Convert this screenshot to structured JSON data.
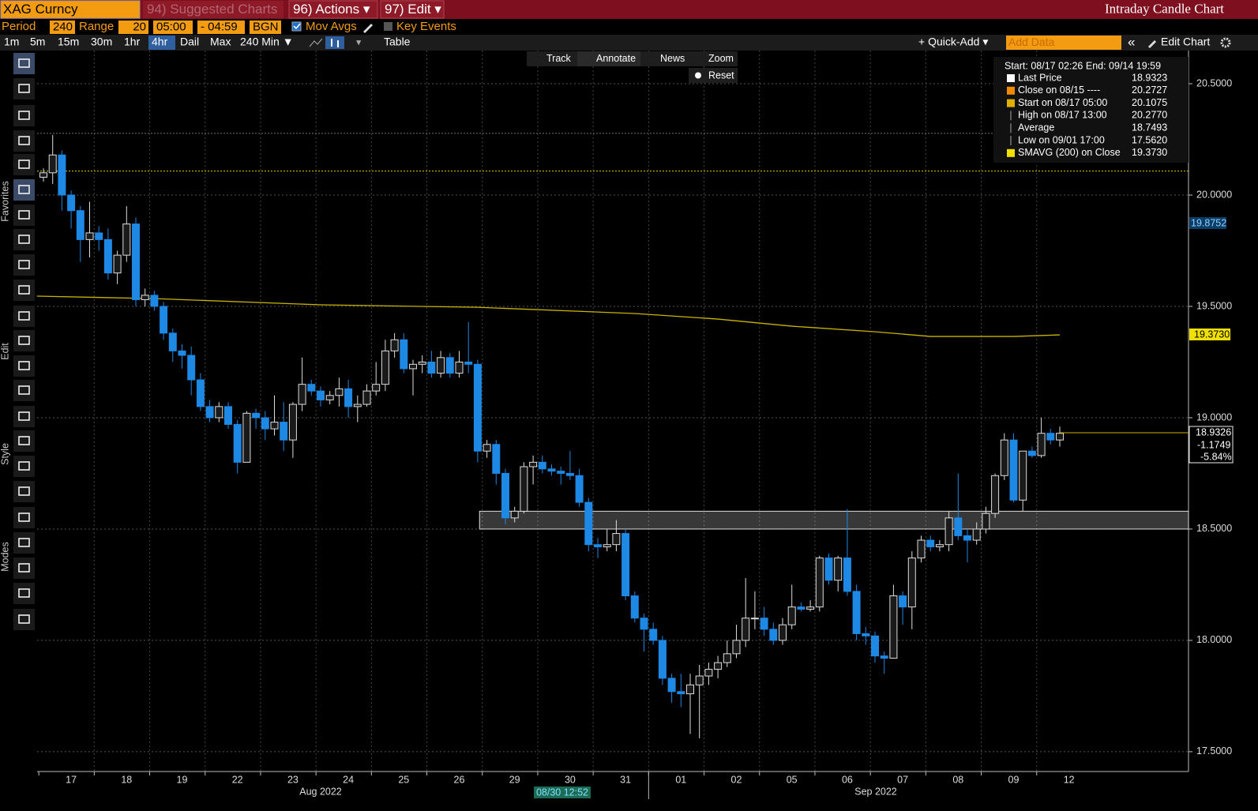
{
  "header": {
    "security": "XAG Curncy",
    "suggested": "94) Suggested Charts",
    "actions": "96) Actions ▾",
    "edit": "97) Edit ▾",
    "title": "Intraday Candle Chart"
  },
  "settings": {
    "period_label": "Period",
    "period": "240",
    "range_label": "Range",
    "range": "20",
    "start": "05:00",
    "end": "- 04:59",
    "bgn": "BGN",
    "mov_avgs": "Mov Avgs",
    "key_events": "Key Events"
  },
  "toolbar": {
    "intervals": [
      "1m",
      "5m",
      "15m",
      "30m",
      "1hr",
      "4hr",
      "Dail",
      "Max",
      "240 Min ▼"
    ],
    "active": 5,
    "table": "Table",
    "quick_add": "+ Quick-Add ▾",
    "add_data": "Add Data",
    "collapse": "«",
    "edit_chart": "Edit Chart"
  },
  "chart_tools": [
    "Track",
    "Annotate",
    "News",
    "Zoom",
    "Reset"
  ],
  "side_labels": [
    "Favorites",
    "Edit",
    "Style",
    "Modes"
  ],
  "legend": {
    "range": "Start: 08/17 02:26 End: 09/14 19:59",
    "rows": [
      {
        "label": "Last Price",
        "value": "18.9323",
        "color": "#ffffff"
      },
      {
        "label": "Close on 08/15 ----",
        "value": "20.2727",
        "color": "#f08a00"
      },
      {
        "label": "Start on 08/17 05:00",
        "value": "20.1075",
        "color": "#e0b000"
      },
      {
        "label": "High on 08/17 13:00",
        "value": "20.2770",
        "color": null
      },
      {
        "label": "Average",
        "value": "18.7493",
        "color": null
      },
      {
        "label": "Low on 09/01 17:00",
        "value": "17.5620",
        "color": null
      },
      {
        "label": "SMAVG (200)  on Close",
        "value": "19.3730",
        "color": "#f0e000"
      }
    ]
  },
  "price_labels": {
    "sma_high": "19.8752",
    "sma": "19.3730",
    "last": "18.9326",
    "change": "-1.1749",
    "change_pct": "-5.84%"
  },
  "cursor_label": "08/30 12:52",
  "chart_data": {
    "type": "candlestick",
    "up_color": "#dddddd",
    "down_color": "#1e88e5",
    "categories": [
      "17",
      "18",
      "19",
      "22",
      "23",
      "24",
      "25",
      "26",
      "29",
      "30",
      "31",
      "01",
      "02",
      "05",
      "06",
      "07",
      "08",
      "09",
      "12"
    ],
    "months": [
      "Aug 2022",
      "Sep 2022"
    ],
    "ylim": [
      17.411,
      20.649
    ],
    "yticks": [
      {
        "value": 17.5,
        "label": "17.5000"
      },
      {
        "value": 18,
        "label": "18.0000"
      },
      {
        "value": 18.5,
        "label": "18.5000"
      },
      {
        "value": 19,
        "label": "19.0000"
      },
      {
        "value": 19.5,
        "label": "19.5000"
      },
      {
        "value": 20,
        "label": "20.0000"
      },
      {
        "value": 20.5,
        "label": "20.5000"
      }
    ],
    "grid": true,
    "ohlc": [
      [
        20.08,
        20.12,
        20.06,
        20.1
      ],
      [
        20.1,
        20.27,
        20.05,
        20.18
      ],
      [
        20.18,
        20.2,
        19.93,
        20.0
      ],
      [
        20.0,
        20.02,
        19.85,
        19.93
      ],
      [
        19.93,
        19.95,
        19.7,
        19.8
      ],
      [
        19.8,
        19.97,
        19.72,
        19.83
      ],
      [
        19.83,
        19.86,
        19.75,
        19.8
      ],
      [
        19.8,
        19.85,
        19.62,
        19.65
      ],
      [
        19.65,
        19.75,
        19.6,
        19.73
      ],
      [
        19.73,
        19.95,
        19.7,
        19.87
      ],
      [
        19.87,
        19.9,
        19.5,
        19.53
      ],
      [
        19.53,
        19.58,
        19.5,
        19.55
      ],
      [
        19.55,
        19.57,
        19.48,
        19.5
      ],
      [
        19.5,
        19.52,
        19.35,
        19.38
      ],
      [
        19.38,
        19.4,
        19.25,
        19.3
      ],
      [
        19.3,
        19.33,
        19.22,
        19.28
      ],
      [
        19.28,
        19.32,
        19.1,
        19.17
      ],
      [
        19.17,
        19.2,
        19.03,
        19.05
      ],
      [
        19.05,
        19.08,
        18.98,
        19.0
      ],
      [
        19.0,
        19.07,
        18.98,
        19.05
      ],
      [
        19.05,
        19.07,
        18.95,
        18.97
      ],
      [
        18.97,
        18.99,
        18.75,
        18.8
      ],
      [
        18.8,
        19.03,
        18.8,
        19.02
      ],
      [
        19.02,
        19.04,
        18.95,
        19.0
      ],
      [
        19.0,
        19.03,
        18.9,
        18.95
      ],
      [
        18.95,
        19.1,
        18.92,
        18.98
      ],
      [
        18.98,
        19.07,
        18.85,
        18.9
      ],
      [
        18.9,
        19.07,
        18.82,
        19.06
      ],
      [
        19.06,
        19.27,
        19.03,
        19.15
      ],
      [
        19.15,
        19.17,
        19.1,
        19.12
      ],
      [
        19.12,
        19.14,
        19.05,
        19.08
      ],
      [
        19.08,
        19.12,
        19.06,
        19.1
      ],
      [
        19.1,
        19.18,
        19.05,
        19.13
      ],
      [
        19.13,
        19.17,
        19.0,
        19.05
      ],
      [
        19.05,
        19.1,
        18.98,
        19.06
      ],
      [
        19.06,
        19.15,
        19.05,
        19.12
      ],
      [
        19.12,
        19.25,
        19.1,
        19.15
      ],
      [
        19.15,
        19.35,
        19.12,
        19.3
      ],
      [
        19.3,
        19.38,
        19.27,
        19.35
      ],
      [
        19.35,
        19.38,
        19.2,
        19.22
      ],
      [
        19.22,
        19.26,
        19.1,
        19.24
      ],
      [
        19.24,
        19.28,
        19.2,
        19.25
      ],
      [
        19.25,
        19.3,
        19.18,
        19.2
      ],
      [
        19.2,
        19.3,
        19.18,
        19.27
      ],
      [
        19.27,
        19.29,
        19.18,
        19.2
      ],
      [
        19.2,
        19.3,
        19.18,
        19.25
      ],
      [
        19.25,
        19.43,
        19.2,
        19.24
      ],
      [
        19.24,
        19.26,
        18.8,
        18.85
      ],
      [
        18.85,
        18.9,
        18.82,
        18.88
      ],
      [
        18.88,
        18.9,
        18.7,
        18.75
      ],
      [
        18.75,
        18.77,
        18.52,
        18.55
      ],
      [
        18.55,
        18.6,
        18.53,
        18.58
      ],
      [
        18.58,
        18.8,
        18.57,
        18.78
      ],
      [
        18.78,
        18.83,
        18.7,
        18.8
      ],
      [
        18.8,
        18.83,
        18.75,
        18.77
      ],
      [
        18.77,
        18.79,
        18.74,
        18.76
      ],
      [
        18.76,
        18.78,
        18.7,
        18.75
      ],
      [
        18.75,
        18.85,
        18.72,
        18.74
      ],
      [
        18.74,
        18.77,
        18.6,
        18.62
      ],
      [
        18.62,
        18.64,
        18.4,
        18.43
      ],
      [
        18.43,
        18.46,
        18.37,
        18.42
      ],
      [
        18.42,
        18.5,
        18.4,
        18.43
      ],
      [
        18.43,
        18.54,
        18.4,
        18.48
      ],
      [
        18.48,
        18.5,
        18.18,
        18.2
      ],
      [
        18.2,
        18.22,
        18.08,
        18.1
      ],
      [
        18.1,
        18.12,
        17.95,
        18.05
      ],
      [
        18.05,
        18.08,
        17.98,
        18.0
      ],
      [
        18.0,
        18.02,
        17.8,
        17.83
      ],
      [
        17.83,
        17.85,
        17.72,
        17.77
      ],
      [
        17.77,
        17.85,
        17.7,
        17.76
      ],
      [
        17.76,
        17.85,
        17.58,
        17.8
      ],
      [
        17.8,
        17.89,
        17.56,
        17.84
      ],
      [
        17.84,
        17.9,
        17.8,
        17.87
      ],
      [
        17.87,
        17.93,
        17.83,
        17.9
      ],
      [
        17.9,
        18.0,
        17.88,
        17.94
      ],
      [
        17.94,
        18.07,
        17.92,
        18.0
      ],
      [
        18.0,
        18.28,
        17.97,
        18.1
      ],
      [
        18.1,
        18.22,
        18.05,
        18.1
      ],
      [
        18.1,
        18.15,
        18.02,
        18.05
      ],
      [
        18.05,
        18.08,
        17.98,
        18.0
      ],
      [
        18.0,
        18.1,
        17.98,
        18.07
      ],
      [
        18.07,
        18.25,
        18.05,
        18.15
      ],
      [
        18.15,
        18.17,
        18.13,
        18.14
      ],
      [
        18.14,
        18.18,
        18.13,
        18.15
      ],
      [
        18.15,
        18.38,
        18.13,
        18.37
      ],
      [
        18.37,
        18.39,
        18.25,
        18.27
      ],
      [
        18.27,
        18.38,
        18.22,
        18.37
      ],
      [
        18.37,
        18.59,
        18.2,
        18.22
      ],
      [
        18.22,
        18.25,
        18.0,
        18.03
      ],
      [
        18.03,
        18.06,
        17.98,
        18.02
      ],
      [
        18.02,
        18.04,
        17.9,
        17.93
      ],
      [
        17.93,
        17.95,
        17.85,
        17.92
      ],
      [
        17.92,
        18.25,
        17.92,
        18.2
      ],
      [
        18.2,
        18.22,
        18.07,
        18.15
      ],
      [
        18.15,
        18.4,
        18.05,
        18.37
      ],
      [
        18.37,
        18.47,
        18.35,
        18.45
      ],
      [
        18.45,
        18.47,
        18.4,
        18.42
      ],
      [
        18.42,
        18.45,
        18.4,
        18.43
      ],
      [
        18.43,
        18.58,
        18.4,
        18.55
      ],
      [
        18.55,
        18.75,
        18.45,
        18.47
      ],
      [
        18.47,
        18.5,
        18.35,
        18.45
      ],
      [
        18.45,
        18.53,
        18.43,
        18.5
      ],
      [
        18.5,
        18.6,
        18.48,
        18.57
      ],
      [
        18.57,
        18.75,
        18.55,
        18.74
      ],
      [
        18.74,
        18.93,
        18.72,
        18.9
      ],
      [
        18.9,
        18.93,
        18.62,
        18.63
      ],
      [
        18.63,
        18.85,
        18.58,
        18.85
      ],
      [
        18.85,
        18.87,
        18.82,
        18.83
      ],
      [
        18.83,
        19.0,
        18.82,
        18.93
      ],
      [
        18.93,
        18.95,
        18.88,
        18.9
      ],
      [
        18.9,
        18.96,
        18.87,
        18.93
      ]
    ],
    "sma": {
      "color": "#c8b400",
      "x": [
        -0.7,
        12,
        30,
        47,
        64,
        73,
        81,
        90,
        96,
        105,
        110
      ],
      "values": [
        19.546,
        19.535,
        19.507,
        19.496,
        19.468,
        19.443,
        19.411,
        19.386,
        19.365,
        19.365,
        19.372
      ]
    },
    "ref_lines": [
      {
        "value": 20.277,
        "color": "#777777"
      },
      {
        "value": 20.1075,
        "color": "#e6d000"
      }
    ],
    "last_price": {
      "value": 18.9323,
      "color": "#c8b400"
    },
    "zone": {
      "low": 18.5,
      "high": 18.58,
      "start": 47.2
    }
  }
}
